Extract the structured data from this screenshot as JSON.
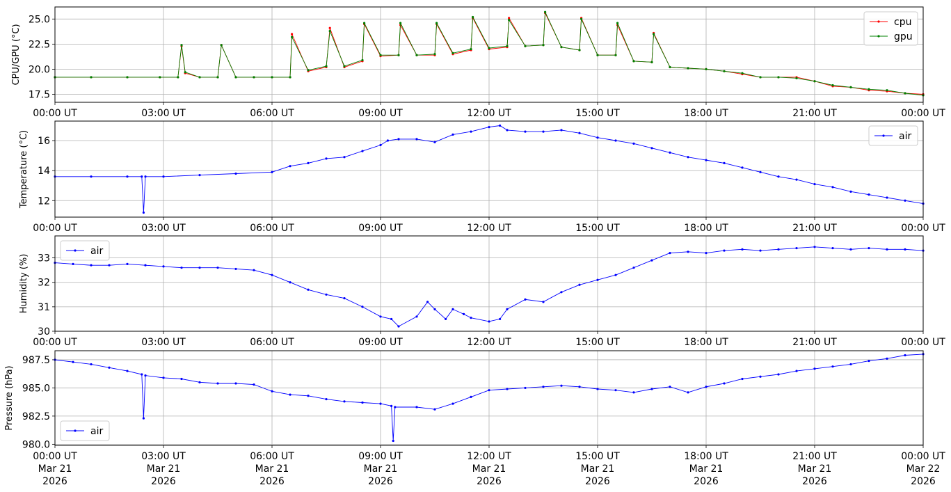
{
  "x_tick_labels": [
    "00:00 UT",
    "03:00 UT",
    "06:00 UT",
    "09:00 UT",
    "12:00 UT",
    "15:00 UT",
    "18:00 UT",
    "21:00 UT",
    "00:00 UT"
  ],
  "x_date_labels": [
    [
      "Mar 21",
      "2026"
    ],
    [
      "Mar 21",
      "2026"
    ],
    [
      "Mar 21",
      "2026"
    ],
    [
      "Mar 21",
      "2026"
    ],
    [
      "Mar 21",
      "2026"
    ],
    [
      "Mar 21",
      "2026"
    ],
    [
      "Mar 21",
      "2026"
    ],
    [
      "Mar 21",
      "2026"
    ],
    [
      "Mar 22",
      "2026"
    ]
  ],
  "colors": {
    "cpu": "#ff0000",
    "gpu": "#008000",
    "air": "#0000ff",
    "grid": "#b0b0b0"
  },
  "chart_data": [
    {
      "type": "line",
      "ylabel": "CPU/GPU (°C)",
      "ylim": [
        16.7,
        26.2
      ],
      "yticks": [
        17.5,
        20.0,
        22.5,
        25.0
      ],
      "ytick_labels": [
        "17.5",
        "20.0",
        "22.5",
        "25.0"
      ],
      "x_range_hours": [
        0,
        24
      ],
      "grid": true,
      "legend": "upper right",
      "series": [
        {
          "name": "cpu",
          "color": "#ff0000",
          "x_hours": [
            0.0,
            1.0,
            2.0,
            2.9,
            3.4,
            3.5,
            3.6,
            4.0,
            4.5,
            4.6,
            5.0,
            5.5,
            6.0,
            6.5,
            6.55,
            7.0,
            7.5,
            7.6,
            8.0,
            8.5,
            8.55,
            9.0,
            9.5,
            9.55,
            10.0,
            10.5,
            10.55,
            11.0,
            11.5,
            11.55,
            12.0,
            12.5,
            12.55,
            13.0,
            13.5,
            13.55,
            14.0,
            14.5,
            14.55,
            15.0,
            15.5,
            15.55,
            16.0,
            16.5,
            16.55,
            17.0,
            17.5,
            18.0,
            18.5,
            19.0,
            19.5,
            20.0,
            20.5,
            21.0,
            21.5,
            22.0,
            22.5,
            23.0,
            23.5,
            24.0
          ],
          "y": [
            19.2,
            19.2,
            19.2,
            19.2,
            19.2,
            22.3,
            19.6,
            19.2,
            19.2,
            22.4,
            19.2,
            19.2,
            19.2,
            19.2,
            23.5,
            19.8,
            20.2,
            24.1,
            20.2,
            20.8,
            24.5,
            21.3,
            21.4,
            24.4,
            21.4,
            21.4,
            24.5,
            21.5,
            21.9,
            25.1,
            22.0,
            22.2,
            25.1,
            22.3,
            22.4,
            25.6,
            22.2,
            21.9,
            25.1,
            21.4,
            21.4,
            24.4,
            20.8,
            20.7,
            23.6,
            20.2,
            20.1,
            20.0,
            19.8,
            19.5,
            19.2,
            19.2,
            19.2,
            18.8,
            18.3,
            18.2,
            17.9,
            17.8,
            17.6,
            17.5
          ]
        },
        {
          "name": "gpu",
          "color": "#008000",
          "x_hours": [
            0.0,
            1.0,
            2.0,
            2.9,
            3.4,
            3.5,
            3.6,
            4.0,
            4.5,
            4.6,
            5.0,
            5.5,
            6.0,
            6.5,
            6.55,
            7.0,
            7.5,
            7.6,
            8.0,
            8.5,
            8.55,
            9.0,
            9.5,
            9.55,
            10.0,
            10.5,
            10.55,
            11.0,
            11.5,
            11.55,
            12.0,
            12.5,
            12.55,
            13.0,
            13.5,
            13.55,
            14.0,
            14.5,
            14.55,
            15.0,
            15.5,
            15.55,
            16.0,
            16.5,
            16.55,
            17.0,
            17.5,
            18.0,
            18.5,
            19.0,
            19.5,
            20.0,
            20.5,
            21.0,
            21.5,
            22.0,
            22.5,
            23.0,
            23.5,
            24.0
          ],
          "y": [
            19.2,
            19.2,
            19.2,
            19.2,
            19.2,
            22.4,
            19.7,
            19.2,
            19.2,
            22.4,
            19.2,
            19.2,
            19.2,
            19.2,
            23.2,
            19.9,
            20.3,
            23.8,
            20.3,
            20.9,
            24.6,
            21.4,
            21.4,
            24.6,
            21.4,
            21.5,
            24.6,
            21.6,
            22.0,
            25.2,
            22.1,
            22.3,
            24.9,
            22.3,
            22.4,
            25.7,
            22.2,
            21.9,
            25.0,
            21.4,
            21.4,
            24.6,
            20.8,
            20.7,
            23.5,
            20.2,
            20.1,
            20.0,
            19.8,
            19.6,
            19.2,
            19.2,
            19.1,
            18.8,
            18.4,
            18.2,
            18.0,
            17.9,
            17.6,
            17.4
          ]
        }
      ]
    },
    {
      "type": "line",
      "ylabel": "Temperature (°C)",
      "ylim": [
        10.9,
        17.3
      ],
      "yticks": [
        12,
        14,
        16
      ],
      "ytick_labels": [
        "12",
        "14",
        "16"
      ],
      "x_range_hours": [
        0,
        24
      ],
      "grid": true,
      "legend": "upper right",
      "series": [
        {
          "name": "air",
          "color": "#0000ff",
          "x_hours": [
            0.0,
            1.0,
            2.0,
            2.4,
            2.45,
            2.5,
            3.0,
            4.0,
            5.0,
            6.0,
            6.5,
            7.0,
            7.5,
            8.0,
            8.5,
            9.0,
            9.2,
            9.5,
            10.0,
            10.5,
            11.0,
            11.5,
            12.0,
            12.3,
            12.5,
            13.0,
            13.5,
            14.0,
            14.5,
            15.0,
            15.5,
            16.0,
            16.5,
            17.0,
            17.5,
            18.0,
            18.5,
            19.0,
            19.5,
            20.0,
            20.5,
            21.0,
            21.5,
            22.0,
            22.5,
            23.0,
            23.5,
            24.0
          ],
          "y": [
            13.6,
            13.6,
            13.6,
            13.6,
            11.2,
            13.6,
            13.6,
            13.7,
            13.8,
            13.9,
            14.3,
            14.5,
            14.8,
            14.9,
            15.3,
            15.7,
            16.0,
            16.1,
            16.1,
            15.9,
            16.4,
            16.6,
            16.9,
            17.0,
            16.7,
            16.6,
            16.6,
            16.7,
            16.5,
            16.2,
            16.0,
            15.8,
            15.5,
            15.2,
            14.9,
            14.7,
            14.5,
            14.2,
            13.9,
            13.6,
            13.4,
            13.1,
            12.9,
            12.6,
            12.4,
            12.2,
            12.0,
            11.8
          ]
        }
      ]
    },
    {
      "type": "line",
      "ylabel": "Humidity (%)",
      "ylim": [
        30.0,
        33.9
      ],
      "yticks": [
        30,
        31,
        32,
        33
      ],
      "ytick_labels": [
        "30",
        "31",
        "32",
        "33"
      ],
      "x_range_hours": [
        0,
        24
      ],
      "grid": true,
      "legend": "upper left",
      "series": [
        {
          "name": "air",
          "color": "#0000ff",
          "x_hours": [
            0.0,
            0.5,
            1.0,
            1.5,
            2.0,
            2.5,
            3.0,
            3.5,
            4.0,
            4.5,
            5.0,
            5.5,
            6.0,
            6.5,
            7.0,
            7.5,
            8.0,
            8.5,
            9.0,
            9.3,
            9.5,
            10.0,
            10.3,
            10.5,
            10.8,
            11.0,
            11.3,
            11.5,
            12.0,
            12.3,
            12.5,
            13.0,
            13.5,
            14.0,
            14.5,
            15.0,
            15.5,
            16.0,
            16.5,
            17.0,
            17.5,
            18.0,
            18.5,
            19.0,
            19.5,
            20.0,
            20.5,
            21.0,
            21.5,
            22.0,
            22.5,
            23.0,
            23.5,
            24.0
          ],
          "y": [
            32.8,
            32.75,
            32.7,
            32.7,
            32.75,
            32.7,
            32.65,
            32.6,
            32.6,
            32.6,
            32.55,
            32.5,
            32.3,
            32.0,
            31.7,
            31.5,
            31.35,
            31.0,
            30.6,
            30.5,
            30.2,
            30.6,
            31.2,
            30.9,
            30.5,
            30.9,
            30.7,
            30.55,
            30.4,
            30.5,
            30.9,
            31.3,
            31.2,
            31.6,
            31.9,
            32.1,
            32.3,
            32.6,
            32.9,
            33.2,
            33.25,
            33.2,
            33.3,
            33.35,
            33.3,
            33.35,
            33.4,
            33.45,
            33.4,
            33.35,
            33.4,
            33.35,
            33.35,
            33.3
          ]
        }
      ]
    },
    {
      "type": "line",
      "ylabel": "Pressure (hPa)",
      "ylim": [
        979.9,
        988.3
      ],
      "yticks": [
        980.0,
        982.5,
        985.0,
        987.5
      ],
      "ytick_labels": [
        "980.0",
        "982.5",
        "985.0",
        "987.5"
      ],
      "x_range_hours": [
        0,
        24
      ],
      "grid": true,
      "legend": "lower left",
      "series": [
        {
          "name": "air",
          "color": "#0000ff",
          "x_hours": [
            0.0,
            0.5,
            1.0,
            1.5,
            2.0,
            2.4,
            2.45,
            2.5,
            3.0,
            3.5,
            4.0,
            4.5,
            5.0,
            5.5,
            6.0,
            6.5,
            7.0,
            7.5,
            8.0,
            8.5,
            9.0,
            9.3,
            9.35,
            9.4,
            10.0,
            10.5,
            11.0,
            11.5,
            12.0,
            12.5,
            13.0,
            13.5,
            14.0,
            14.5,
            15.0,
            15.5,
            16.0,
            16.5,
            17.0,
            17.5,
            18.0,
            18.5,
            19.0,
            19.5,
            20.0,
            20.5,
            21.0,
            21.5,
            22.0,
            22.5,
            23.0,
            23.5,
            24.0
          ],
          "y": [
            987.5,
            987.3,
            987.1,
            986.8,
            986.5,
            986.2,
            982.3,
            986.1,
            985.9,
            985.8,
            985.5,
            985.4,
            985.4,
            985.3,
            984.7,
            984.4,
            984.3,
            984.0,
            983.8,
            983.7,
            983.6,
            983.4,
            980.3,
            983.3,
            983.3,
            983.1,
            983.6,
            984.2,
            984.8,
            984.9,
            985.0,
            985.1,
            985.2,
            985.1,
            984.9,
            984.8,
            984.6,
            984.9,
            985.1,
            984.6,
            985.1,
            985.4,
            985.8,
            986.0,
            986.2,
            986.5,
            986.7,
            986.9,
            987.1,
            987.4,
            987.6,
            987.9,
            988.0
          ]
        }
      ]
    }
  ]
}
